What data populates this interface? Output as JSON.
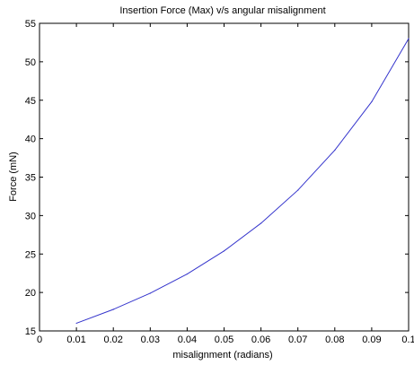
{
  "chart_data": {
    "type": "line",
    "title": "Insertion Force (Max) v/s angular misalignment",
    "xlabel": "misalignment (radians)",
    "ylabel": "Force (mN)",
    "xlim": [
      0,
      0.1
    ],
    "ylim": [
      15,
      55
    ],
    "grid": false,
    "legend": "none",
    "x_ticks": [
      "0",
      "0.01",
      "0.02",
      "0.03",
      "0.04",
      "0.05",
      "0.06",
      "0.07",
      "0.08",
      "0.09",
      "0.1"
    ],
    "y_ticks": [
      "15",
      "20",
      "25",
      "30",
      "35",
      "40",
      "45",
      "50",
      "55"
    ],
    "series": [
      {
        "color": "#3333cc",
        "x": [
          0.01,
          0.02,
          0.03,
          0.04,
          0.05,
          0.06,
          0.07,
          0.08,
          0.09,
          0.1
        ],
        "y": [
          16.0,
          17.8,
          19.9,
          22.4,
          25.4,
          29.0,
          33.3,
          38.5,
          44.8,
          53.0
        ]
      }
    ]
  }
}
